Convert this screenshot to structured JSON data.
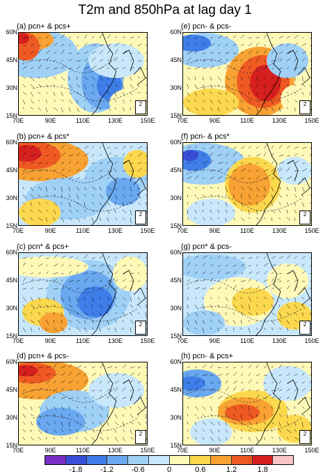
{
  "title": "T2m and 850hPa at lag day 1",
  "lat_labels": [
    "60N",
    "45N",
    "30N",
    "15N"
  ],
  "lon_labels": [
    "70E",
    "90E",
    "110E",
    "130E",
    "150E"
  ],
  "reference_vector": "2",
  "panels": [
    {
      "label": "(a) pcn+ & pcs+",
      "pattern": "a"
    },
    {
      "label": "(e) pcn- & pcs-",
      "pattern": "e"
    },
    {
      "label": "(b) pcn+ & pcs*",
      "pattern": "b"
    },
    {
      "label": "(f) pcn- & pcs*",
      "pattern": "f"
    },
    {
      "label": "(c) pcn* & pcs+",
      "pattern": "c"
    },
    {
      "label": "(g) pcn* & pcs-",
      "pattern": "g"
    },
    {
      "label": "(d) pcn+ & pcs-",
      "pattern": "d"
    },
    {
      "label": "(h) pcn- & pcs+",
      "pattern": "h"
    }
  ],
  "colorbar": {
    "colors": [
      "#7a30c8",
      "#3a4fd8",
      "#3f7ee8",
      "#6aa8ef",
      "#9fd0f6",
      "#c8e7fb",
      "#fff9b8",
      "#fbd84e",
      "#f7a233",
      "#ef5a23",
      "#d61f1f",
      "#f8c4c4"
    ],
    "ticks": [
      "-1.8",
      "-1.2",
      "-0.6",
      "0",
      "0.6",
      "1.2",
      "1.8"
    ]
  }
}
